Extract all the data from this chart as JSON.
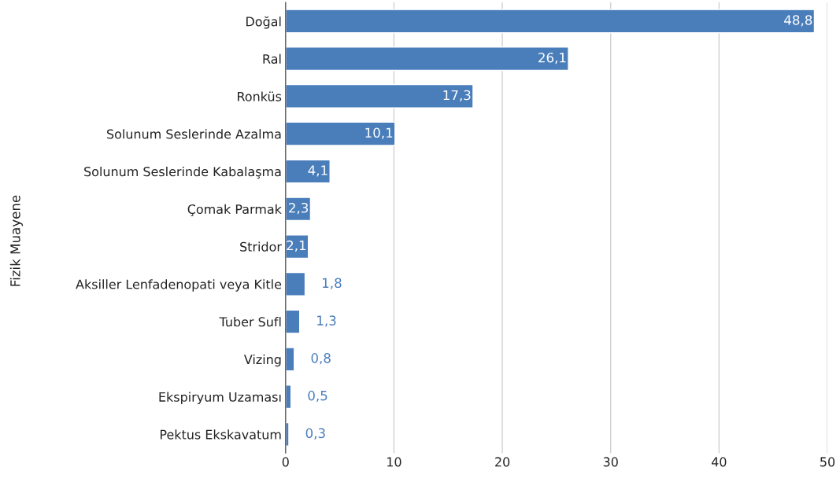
{
  "chart_data": {
    "type": "bar",
    "orientation": "horizontal",
    "ylabel": "Fizik Muayene",
    "categories": [
      "Doğal",
      "Ral",
      "Ronküs",
      "Solunum Seslerinde Azalma",
      "Solunum Seslerinde Kabalaşma",
      "Çomak Parmak",
      "Stridor",
      "Aksiller Lenfadenopati veya Kitle",
      "Tuber Sufl",
      "Vizing",
      "Ekspiryum Uzaması",
      "Pektus Ekskavatum"
    ],
    "values": [
      48.8,
      26.1,
      17.3,
      10.1,
      4.1,
      2.3,
      2.1,
      1.8,
      1.3,
      0.8,
      0.5,
      0.3
    ],
    "value_labels": [
      "48,8",
      "26,1",
      "17,3",
      "10,1",
      "4,1",
      "2,3",
      "2,1",
      "1,8",
      "1,3",
      "0,8",
      "0,5",
      "0,3"
    ],
    "color": "#4a7ebb",
    "xlim": [
      0,
      50
    ],
    "xticks": [
      0,
      10,
      20,
      30,
      40,
      50
    ],
    "grid": "x",
    "legend": false
  }
}
